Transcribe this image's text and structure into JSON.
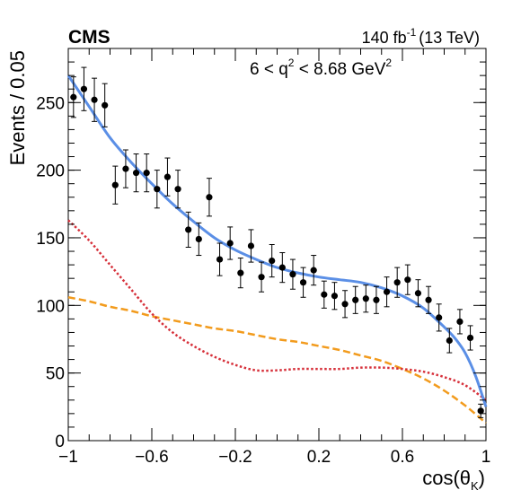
{
  "header": {
    "experiment": "CMS",
    "lumi_value": "140 fb",
    "lumi_exp": "-1",
    "energy": "(13 TeV)",
    "annotation": {
      "pre": "6 < q",
      "exp": "2",
      "mid": " < 8.68 GeV",
      "exp2": "2"
    }
  },
  "colors": {
    "data": "#000000",
    "total_fit": "#5b8fe6",
    "component_red": "#d6303a",
    "component_orange": "#f29b1d"
  },
  "chart_data": {
    "type": "scatter",
    "title": "",
    "xlabel": "cos(θ",
    "xlabel_sub": "K",
    "xlabel_close": ")",
    "ylabel": "Events / 0.05",
    "xlim": [
      -1,
      1
    ],
    "ylim": [
      0,
      290
    ],
    "xticks": [
      -1,
      -0.6,
      -0.2,
      0.2,
      0.6,
      1
    ],
    "xtick_labels": [
      "−1",
      "−0.6",
      "−0.2",
      "0.2",
      "0.6",
      "1"
    ],
    "yticks": [
      0,
      50,
      100,
      150,
      200,
      250
    ],
    "ytick_labels": [
      "0",
      "50",
      "100",
      "150",
      "200",
      "250"
    ],
    "series": [
      {
        "kind": "data",
        "x": [
          -0.975,
          -0.925,
          -0.875,
          -0.825,
          -0.775,
          -0.725,
          -0.675,
          -0.625,
          -0.575,
          -0.525,
          -0.475,
          -0.425,
          -0.375,
          -0.325,
          -0.275,
          -0.225,
          -0.175,
          -0.125,
          -0.075,
          -0.025,
          0.025,
          0.075,
          0.125,
          0.175,
          0.225,
          0.275,
          0.325,
          0.375,
          0.425,
          0.475,
          0.525,
          0.575,
          0.625,
          0.675,
          0.725,
          0.775,
          0.825,
          0.875,
          0.925,
          0.975
        ],
        "y": [
          254,
          260,
          252,
          248,
          189,
          201,
          198,
          198,
          186,
          195,
          186,
          156,
          149,
          180,
          134,
          146,
          124,
          144,
          121,
          133,
          128,
          123,
          117,
          126,
          108,
          107,
          101,
          104,
          105,
          104,
          110,
          117,
          119,
          109,
          104,
          91,
          74,
          88,
          76,
          22
        ],
        "err": [
          15,
          16,
          16,
          16,
          14,
          14,
          14,
          14,
          14,
          14,
          14,
          13,
          12,
          14,
          12,
          12,
          11,
          12,
          11,
          12,
          11,
          11,
          11,
          11,
          10,
          10,
          10,
          10,
          10,
          10,
          11,
          11,
          11,
          10,
          10,
          10,
          9,
          9,
          9,
          5
        ]
      },
      {
        "kind": "line",
        "style": "solid",
        "x": [
          -1,
          -0.9,
          -0.8,
          -0.7,
          -0.6,
          -0.5,
          -0.4,
          -0.3,
          -0.2,
          -0.1,
          0,
          0.1,
          0.2,
          0.3,
          0.4,
          0.5,
          0.6,
          0.7,
          0.8,
          0.85,
          0.9,
          0.95,
          1
        ],
        "y": [
          270,
          247,
          224,
          206,
          190,
          175,
          162,
          150,
          141,
          134,
          128,
          124,
          121,
          119,
          117,
          113,
          107,
          98,
          84,
          76,
          65,
          48,
          25
        ]
      },
      {
        "kind": "line",
        "style": "dotted",
        "x": [
          -1,
          -0.9,
          -0.8,
          -0.7,
          -0.6,
          -0.5,
          -0.4,
          -0.3,
          -0.2,
          -0.1,
          0,
          0.1,
          0.2,
          0.3,
          0.4,
          0.5,
          0.6,
          0.7,
          0.8,
          0.9,
          1
        ],
        "y": [
          163,
          148,
          130,
          112,
          94,
          80,
          70,
          62,
          56,
          52,
          52,
          53,
          53,
          53,
          54,
          54,
          53,
          51,
          47,
          41,
          30
        ]
      },
      {
        "kind": "line",
        "style": "dashed",
        "x": [
          -1,
          -0.9,
          -0.8,
          -0.7,
          -0.6,
          -0.5,
          -0.4,
          -0.3,
          -0.2,
          -0.1,
          0,
          0.1,
          0.2,
          0.3,
          0.4,
          0.5,
          0.6,
          0.7,
          0.8,
          0.9,
          1
        ],
        "y": [
          106,
          103,
          99,
          96,
          92,
          89,
          86,
          83,
          81,
          78,
          75,
          73,
          70,
          67,
          63,
          59,
          53,
          46,
          37,
          26,
          13
        ]
      }
    ]
  }
}
